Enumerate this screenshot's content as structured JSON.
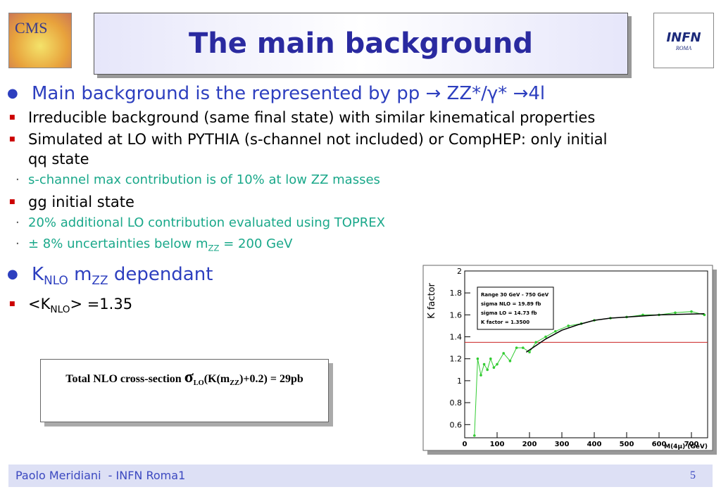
{
  "header": {
    "title": "The main background",
    "logo_left": "CMS",
    "logo_right": "INFN",
    "logo_right_sub": "ROMA"
  },
  "bullets": [
    {
      "parts": [
        "Main background is the represented by pp → ZZ*/γ* →4l"
      ],
      "children": [
        {
          "parts": [
            "Irreducible background (same final state) with similar kinematical properties"
          ]
        },
        {
          "parts": [
            "Simulated at LO with PYTHIA (s-channel not included) or CompHEP: only initial qq state"
          ],
          "children": [
            {
              "parts": [
                "s-channel max contribution is of 10% at low ZZ masses"
              ]
            }
          ]
        },
        {
          "parts": [
            "gg initial state"
          ],
          "children": [
            {
              "parts": [
                "20% additional LO contribution evaluated using TOPREX"
              ]
            },
            {
              "parts": [
                "± 8% uncertainties below m",
                {
                  "sub": "ZZ"
                },
                " = 200 GeV"
              ]
            }
          ]
        }
      ]
    },
    {
      "parts": [
        "K",
        {
          "sub": "NLO"
        },
        " m",
        {
          "sub": "ZZ"
        },
        " dependant"
      ],
      "children": [
        {
          "parts": [
            "<K",
            {
              "sub": "NLO"
            },
            "> =1.35"
          ]
        }
      ]
    }
  ],
  "box": {
    "parts": [
      "Total NLO cross-section ",
      "σ",
      {
        "sub": "LO"
      },
      "(K(m",
      {
        "sub": "ZZ"
      },
      ")+0.2) = 29pb"
    ]
  },
  "chart_data": {
    "type": "line",
    "x_label": "M(4μ) (GeV)",
    "y_label": "K factor",
    "xlim": [
      0,
      750
    ],
    "ylim": [
      0.48,
      2
    ],
    "xticks": [
      0,
      100,
      200,
      300,
      400,
      500,
      600,
      700
    ],
    "yticks": [
      0.6,
      0.8,
      1,
      1.2,
      1.4,
      1.6,
      1.8,
      2
    ],
    "series": [
      {
        "color": "#33cc33",
        "x": [
          30,
          40,
          50,
          60,
          70,
          80,
          90,
          100,
          120,
          140,
          160,
          180,
          200,
          220,
          250,
          280,
          320,
          360,
          400,
          450,
          500,
          550,
          600,
          650,
          700,
          740
        ],
        "values": [
          0.5,
          1.2,
          1.05,
          1.15,
          1.1,
          1.2,
          1.12,
          1.15,
          1.25,
          1.18,
          1.3,
          1.3,
          1.26,
          1.35,
          1.4,
          1.45,
          1.5,
          1.52,
          1.55,
          1.57,
          1.58,
          1.6,
          1.6,
          1.62,
          1.63,
          1.6
        ]
      },
      {
        "color": "#000000",
        "x": [
          190,
          220,
          250,
          300,
          350,
          400,
          450,
          500,
          600,
          740
        ],
        "values": [
          1.26,
          1.32,
          1.38,
          1.46,
          1.51,
          1.55,
          1.57,
          1.58,
          1.6,
          1.61
        ]
      }
    ],
    "hline": {
      "value": 1.35,
      "color": "#cc2222"
    },
    "stats": [
      "Range 30 GeV - 750 GeV",
      "sigma NLO = 19.89 fb",
      "sigma LO = 14.73 fb",
      "K factor = 1.3500"
    ]
  },
  "footer": {
    "author": "Paolo Meridiani  - INFN Roma1",
    "page": "5"
  }
}
